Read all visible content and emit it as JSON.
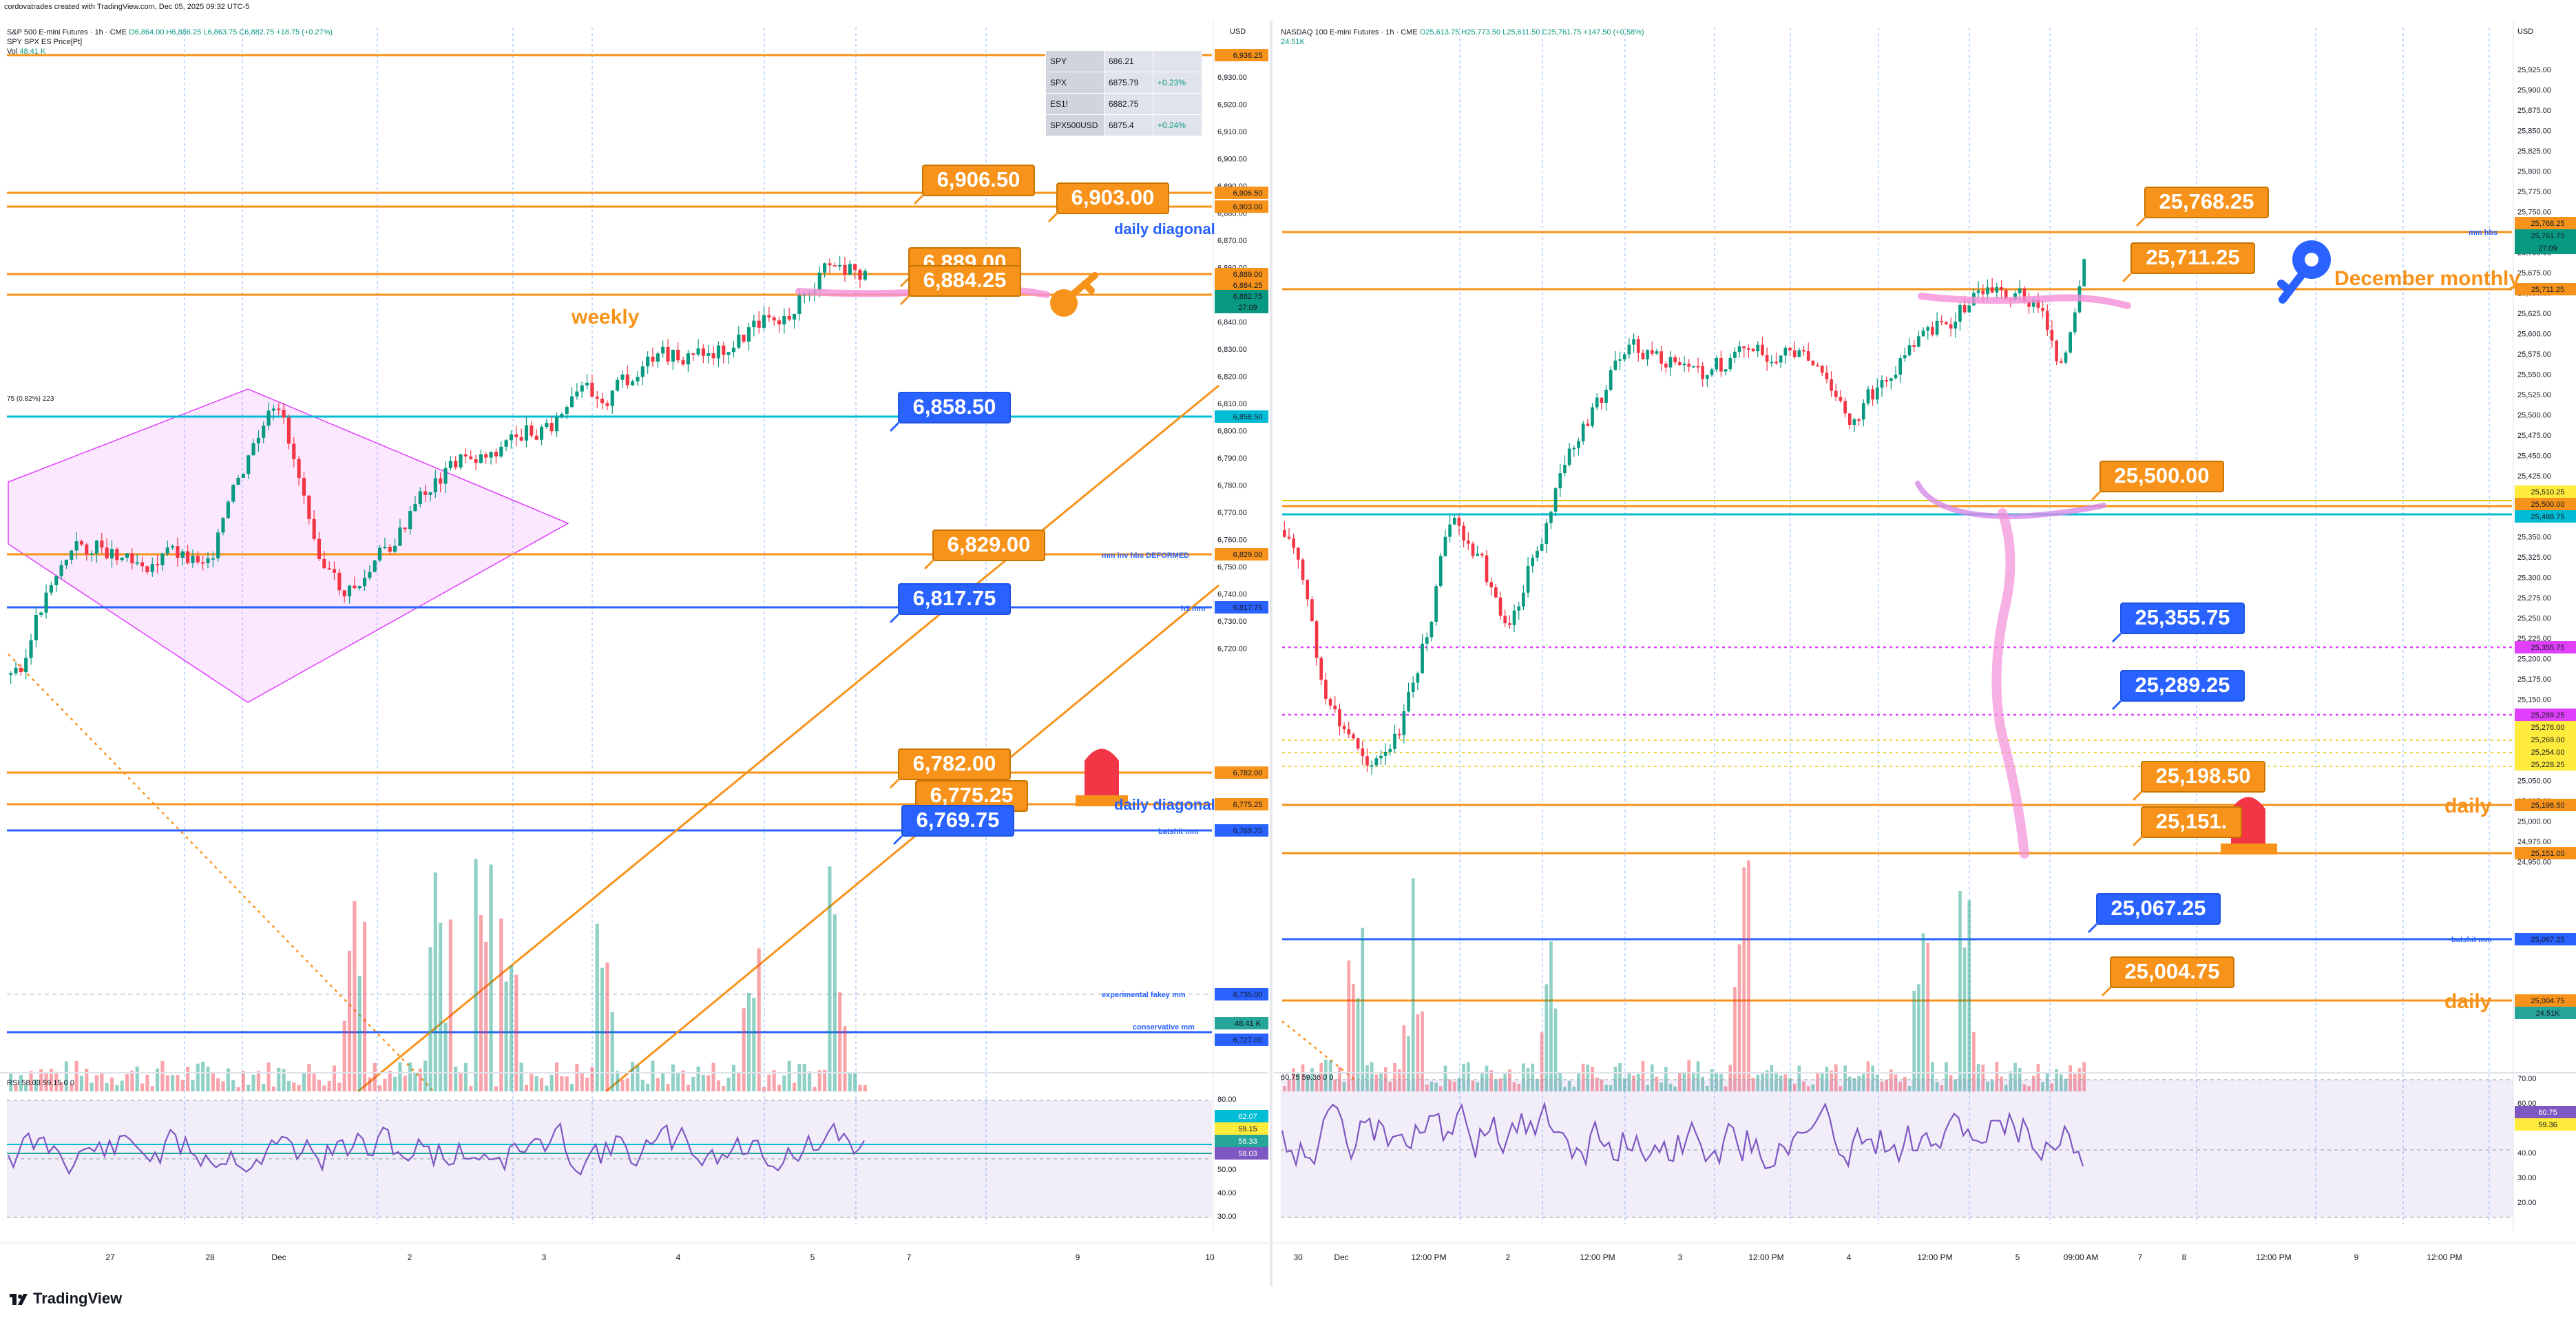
{
  "header": {
    "credit": "cordovatrades created with TradingView.com, Dec 05, 2025 09:32 UTC-5"
  },
  "brand": {
    "logo_text": "TradingView"
  },
  "left": {
    "title": "S&P 500 E-mini Futures · 1h · CME",
    "ohlc": "O6,864.00 H6,886.25 L6,863.75 C6,882.75 +18.75 (+0.27%)",
    "overlay": "SPY SPX ES Price[Pt]",
    "vol": "Vol",
    "vol_value": "48.41 K",
    "currency": "USD",
    "pattern_label": "75 (0.82%) 223",
    "rsi_legend": "RSI 58.03 59.15 0 0",
    "rsi_scale": [
      "80.00",
      "70.00",
      "60.00",
      "50.00",
      "40.00",
      "30.00"
    ],
    "rsi_tags": [
      {
        "text": "62.07",
        "bg": "#00bcd4",
        "fg": "#ffffff"
      },
      {
        "text": "59.15",
        "bg": "#ffeb3b",
        "fg": "#131722"
      },
      {
        "text": "58.33",
        "bg": "#26a69a",
        "fg": "#ffffff"
      },
      {
        "text": "58.03",
        "bg": "#7e57c2",
        "fg": "#ffffff"
      }
    ],
    "price_scale": [
      "6,930.00",
      "6,920.00",
      "6,910.00",
      "6,900.00",
      "6,890.00",
      "6,880.00",
      "6,870.00",
      "6,860.00",
      "6,850.00",
      "6,840.00",
      "6,830.00",
      "6,820.00",
      "6,810.00",
      "6,800.00",
      "6,790.00",
      "6,780.00",
      "6,770.00",
      "6,760.00",
      "6,750.00",
      "6,740.00",
      "6,730.00",
      "6,720.00"
    ],
    "axis_tags": [
      {
        "text": "6,936.25",
        "bg": "#f7931a"
      },
      {
        "text": "6,906.50",
        "bg": "#f7931a"
      },
      {
        "text": "6,903.00",
        "bg": "#f7931a"
      },
      {
        "text": "6,889.00",
        "bg": "#f7931a"
      },
      {
        "text": "6,884.25",
        "bg": "#f7931a"
      },
      {
        "text": "6,882.75",
        "bg": "#089981"
      },
      {
        "text": "27:09",
        "bg": "#089981"
      },
      {
        "text": "6,858.50",
        "bg": "#00bcd4"
      },
      {
        "text": "6,829.00",
        "bg": "#f7931a"
      },
      {
        "text": "6,817.75",
        "bg": "#2962ff"
      },
      {
        "text": "6,782.00",
        "bg": "#f7931a"
      },
      {
        "text": "6,775.25",
        "bg": "#f7931a"
      },
      {
        "text": "6,769.75",
        "bg": "#2962ff"
      },
      {
        "text": "6,735.00",
        "bg": "#2962ff"
      },
      {
        "text": "48.41 K",
        "bg": "#26a69a"
      },
      {
        "text": "6,727.00",
        "bg": "#2962ff"
      }
    ],
    "callouts": [
      "6,906.50",
      "6,903.00",
      "6,889.00",
      "6,884.25",
      "6,858.50",
      "6,829.00",
      "6,817.75",
      "6,782.00",
      "6,775.25",
      "6,769.75"
    ],
    "line_labels": [
      "weekly",
      "daily diagonal",
      "mm inv hbs  DEFORMED",
      "h1 mm",
      "daily diagonal",
      "batshit mm",
      "experimental fakey mm",
      "conservative mm"
    ],
    "time_labels": [
      "27",
      "28",
      "Dec",
      "2",
      "3",
      "4",
      "5",
      "7",
      "9",
      "10"
    ],
    "watchlist": [
      {
        "sym": "SPY",
        "price": "686.21",
        "chg": ""
      },
      {
        "sym": "SPX",
        "price": "6875.79",
        "chg": "+0.23%"
      },
      {
        "sym": "ES1!",
        "price": "6882.75",
        "chg": ""
      },
      {
        "sym": "SPX500USD",
        "price": "6875.4",
        "chg": "+0.24%"
      }
    ]
  },
  "right": {
    "title": "NASDAQ 100 E-mini Futures · 1h · CME",
    "ohlc": "O25,613.75 H25,773.50 L25,611.50 C25,761.75 +147.50 (+0.58%)",
    "vol_value": "24.51K",
    "currency": "USD",
    "rsi_legend": "60.75 59.36 0 0",
    "rsi_scale": [
      "70.00",
      "60.00",
      "50.00",
      "40.00",
      "30.00",
      "20.00"
    ],
    "rsi_tags": [
      {
        "text": "60.75",
        "bg": "#7e57c2",
        "fg": "#ffffff"
      },
      {
        "text": "59.36",
        "bg": "#ffeb3b",
        "fg": "#131722"
      }
    ],
    "price_scale": [
      "25,925.00",
      "25,900.00",
      "25,875.00",
      "25,850.00",
      "25,825.00",
      "25,800.00",
      "25,775.00",
      "25,750.00",
      "25,725.00",
      "25,700.00",
      "25,675.00",
      "25,650.00",
      "25,625.00",
      "25,600.00",
      "25,575.00",
      "25,550.00",
      "25,525.00",
      "25,500.00",
      "25,475.00",
      "25,450.00",
      "25,425.00",
      "25,400.00",
      "25,375.00",
      "25,350.00",
      "25,325.00",
      "25,300.00",
      "25,275.00",
      "25,250.00",
      "25,225.00",
      "25,200.00",
      "25,175.00",
      "25,150.00",
      "25,125.00",
      "25,100.00",
      "25,075.00",
      "25,050.00",
      "25,025.00",
      "25,000.00",
      "24,975.00",
      "24,950.00"
    ],
    "axis_tags": [
      {
        "text": "25,768.25",
        "bg": "#f7931a"
      },
      {
        "text": "25,761.75",
        "bg": "#089981"
      },
      {
        "text": "27:09",
        "bg": "#089981"
      },
      {
        "text": "25,711.25",
        "bg": "#f7931a"
      },
      {
        "text": "25,510.25",
        "bg": "#ffeb3b"
      },
      {
        "text": "25,500.00",
        "bg": "#f7931a"
      },
      {
        "text": "25,488.75",
        "bg": "#00bcd4"
      },
      {
        "text": "25,355.75",
        "bg": "#e040fb"
      },
      {
        "text": "25,289.25",
        "bg": "#e040fb"
      },
      {
        "text": "25,276.00",
        "bg": "#ffeb3b"
      },
      {
        "text": "25,269.00",
        "bg": "#ffeb3b"
      },
      {
        "text": "25,254.00",
        "bg": "#ffeb3b"
      },
      {
        "text": "25,228.25",
        "bg": "#ffeb3b"
      },
      {
        "text": "25,198.50",
        "bg": "#f7931a"
      },
      {
        "text": "25,151.00",
        "bg": "#f7931a"
      },
      {
        "text": "25,067.25",
        "bg": "#2962ff"
      },
      {
        "text": "25,004.75",
        "bg": "#f7931a"
      },
      {
        "text": "24.51K",
        "bg": "#26a69a"
      }
    ],
    "callouts": [
      "25,768.25",
      "25,711.25",
      "25,500.00",
      "25,355.75",
      "25,289.25",
      "25,198.50",
      "25,151.",
      "25,067.25",
      "25,004.75"
    ],
    "line_labels": [
      "mm hbs",
      "December monthly",
      "daily",
      "batshit mm",
      "daily"
    ],
    "time_labels": [
      "30",
      "Dec",
      "12:00 PM",
      "2",
      "12:00 PM",
      "3",
      "12:00 PM",
      "4",
      "12:00 PM",
      "5",
      "09:00 AM",
      "7",
      "8",
      "12:00 PM",
      "9",
      "12:00 PM"
    ]
  },
  "colors": {
    "orange": "#f7931a",
    "blue": "#2962ff",
    "cyan": "#00bcd4",
    "magenta": "#e040fb",
    "bull": "#089981",
    "bear": "#f23645",
    "rsi": "#7e57c2"
  }
}
